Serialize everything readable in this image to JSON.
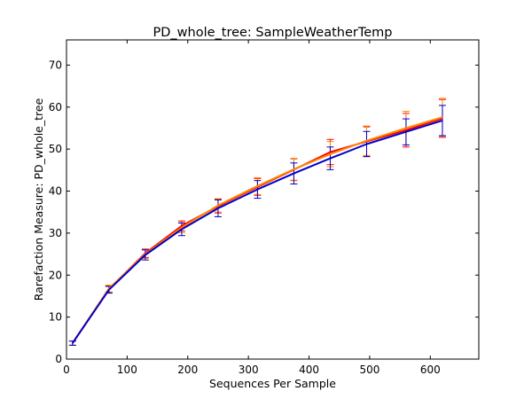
{
  "chart_data": {
    "type": "line",
    "title": "PD_whole_tree: SampleWeatherTemp",
    "xlabel": "Sequences Per Sample",
    "ylabel": "Rarefaction Measure: PD_whole_tree",
    "xlim": [
      0,
      680
    ],
    "ylim": [
      0,
      76
    ],
    "xticks": [
      0,
      100,
      200,
      300,
      400,
      500,
      600
    ],
    "yticks": [
      0,
      10,
      20,
      30,
      40,
      50,
      60,
      70
    ],
    "grid": false,
    "legend": "none",
    "x": [
      10,
      70,
      130,
      190,
      250,
      315,
      375,
      435,
      495,
      560,
      620
    ],
    "series": [
      {
        "color": "#ff0000",
        "values": [
          3.8,
          16.7,
          25.2,
          31.7,
          36.4,
          41.0,
          45.1,
          49.3,
          51.8,
          54.5,
          57.3
        ],
        "errors": [
          0.5,
          0.8,
          1.0,
          1.2,
          1.6,
          2.0,
          2.6,
          3.0,
          3.5,
          4.0,
          4.5
        ]
      },
      {
        "color": "#ff8800",
        "values": [
          3.8,
          16.8,
          25.0,
          31.3,
          36.6,
          41.2,
          45.2,
          48.8,
          52.0,
          55.0,
          57.6
        ],
        "errors": [
          0.5,
          0.8,
          1.0,
          1.2,
          1.6,
          2.0,
          2.6,
          3.0,
          3.5,
          4.0,
          4.5
        ]
      },
      {
        "color": "#0000cc",
        "values": [
          3.8,
          16.5,
          24.8,
          30.9,
          35.9,
          40.4,
          44.2,
          47.8,
          51.2,
          54.1,
          56.8
        ],
        "errors": [
          0.5,
          0.8,
          1.2,
          1.5,
          2.0,
          2.1,
          2.5,
          2.7,
          3.0,
          3.1,
          3.6
        ]
      }
    ]
  }
}
